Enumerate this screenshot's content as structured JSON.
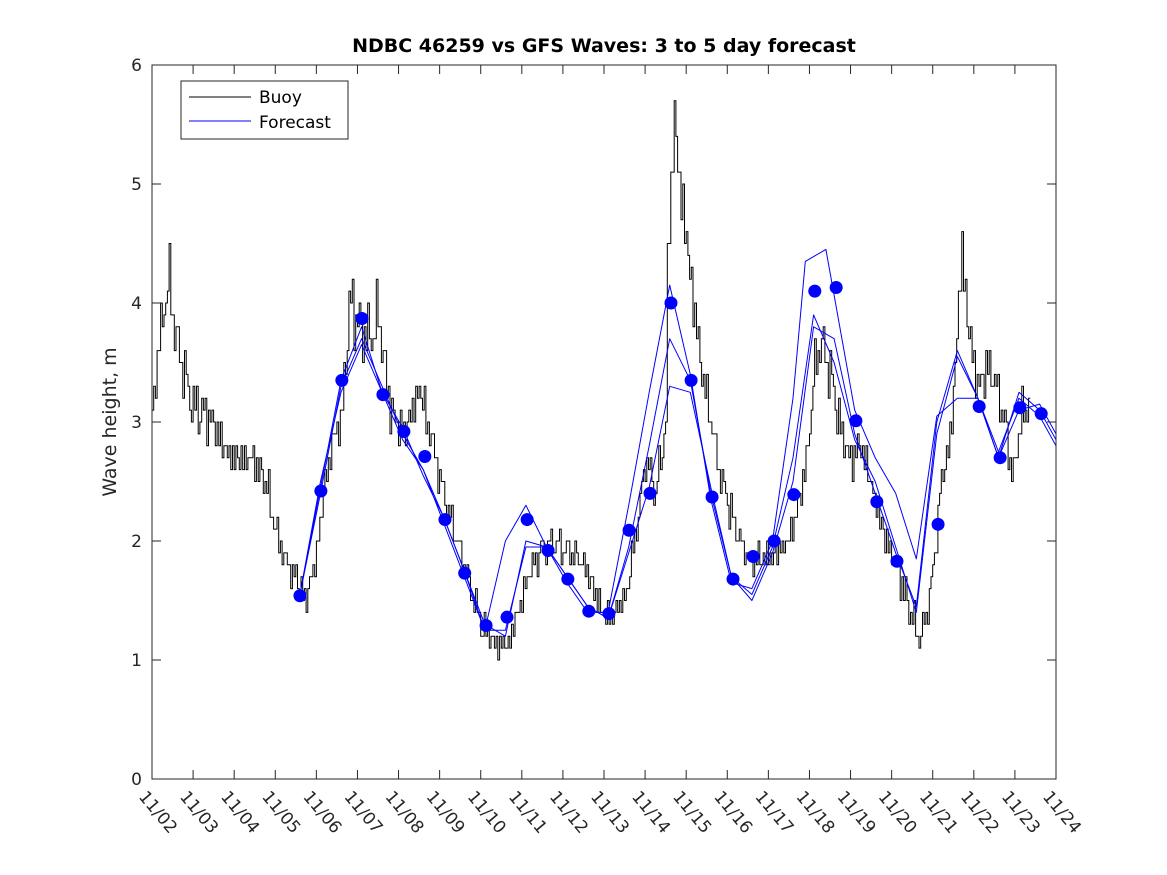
{
  "chart_data": {
    "type": "line",
    "title": "NDBC 46259 vs GFS Waves: 3 to 5 day forecast",
    "xlabel": "",
    "ylabel": "Wave height, m",
    "x_units": "days since 11/02",
    "xlim": [
      0,
      22
    ],
    "ylim": [
      0,
      6
    ],
    "grid": false,
    "legend_position": "top-left",
    "x_tick_labels": [
      "11/02",
      "11/03",
      "11/04",
      "11/05",
      "11/06",
      "11/07",
      "11/08",
      "11/09",
      "11/10",
      "11/11",
      "11/12",
      "11/13",
      "11/14",
      "11/15",
      "11/16",
      "11/17",
      "11/18",
      "11/19",
      "11/20",
      "11/21",
      "11/22",
      "11/23",
      "11/24"
    ],
    "y_ticks": [
      0,
      1,
      2,
      3,
      4,
      5,
      6
    ],
    "legend": [
      {
        "label": "Buoy",
        "color": "#000000"
      },
      {
        "label": "Forecast",
        "color": "#0000ff"
      }
    ],
    "buoy": {
      "name": "Buoy",
      "color": "#000000",
      "x": [
        0,
        0.1,
        0.3,
        0.4,
        0.5,
        0.7,
        0.9,
        1.4,
        1.9,
        2.4,
        2.75,
        3.0,
        3.25,
        3.5,
        3.7,
        4.0,
        4.2,
        4.45,
        4.6,
        4.7,
        4.8,
        5.05,
        5.3,
        5.5,
        5.7,
        5.9,
        6.15,
        6.5,
        6.75,
        7.0,
        7.25,
        7.5,
        7.75,
        8.0,
        8.35,
        8.6,
        8.85,
        9.1,
        9.45,
        9.8,
        10.2,
        10.55,
        10.8,
        11.15,
        11.5,
        11.75,
        12.0,
        12.25,
        12.5,
        12.55,
        12.7,
        12.85,
        13.1,
        13.35,
        13.6,
        13.8,
        14.1,
        14.45,
        14.8,
        15.15,
        15.5,
        15.9,
        16.1,
        16.25,
        16.5,
        16.75,
        17.0,
        17.25,
        17.6,
        17.85,
        18.2,
        18.45,
        18.7,
        18.95,
        19.2,
        19.4,
        19.6,
        19.7,
        19.85,
        20.1,
        20.4,
        20.75,
        20.95,
        21.1,
        21.35
      ],
      "y": [
        3.0,
        3.5,
        4.0,
        4.2,
        3.9,
        3.5,
        3.2,
        3.0,
        2.7,
        2.7,
        2.5,
        2.1,
        1.8,
        1.7,
        1.5,
        1.9,
        2.5,
        2.9,
        3.0,
        3.5,
        4.0,
        3.8,
        3.7,
        3.9,
        3.3,
        3.0,
        2.9,
        3.3,
        2.9,
        2.5,
        2.2,
        1.9,
        1.6,
        1.3,
        1.15,
        1.1,
        1.3,
        1.7,
        1.9,
        2.0,
        1.9,
        1.8,
        1.5,
        1.35,
        1.5,
        2.0,
        2.7,
        2.4,
        3.0,
        4.5,
        5.5,
        5.0,
        4.2,
        3.5,
        3.0,
        2.6,
        2.2,
        1.9,
        1.85,
        1.9,
        2.0,
        2.6,
        3.4,
        3.7,
        3.4,
        2.9,
        2.7,
        2.8,
        2.3,
        2.0,
        1.7,
        1.4,
        1.2,
        1.6,
        2.5,
        2.8,
        3.8,
        4.5,
        3.8,
        3.3,
        3.5,
        3.0,
        2.5,
        3.0,
        3.2
      ]
    },
    "forecast_lines": [
      {
        "name": "Forecast",
        "color": "#0000ff",
        "x": [
          3.6,
          4.1,
          4.6,
          5.1,
          5.6,
          6.1,
          6.6,
          7.1,
          7.6,
          8.1,
          8.6,
          9.1,
          9.6,
          10.1,
          10.6,
          11.1,
          11.6,
          12.1,
          12.6,
          13.1,
          13.6,
          14.1,
          14.6,
          15.1,
          15.6,
          16.1,
          16.6,
          17.1,
          17.6,
          18.1,
          18.6,
          19.1,
          19.6,
          20.1,
          20.6,
          21.1,
          21.6,
          22
        ],
        "y": [
          1.55,
          2.4,
          3.3,
          3.7,
          3.3,
          2.9,
          2.6,
          2.2,
          1.75,
          1.3,
          1.2,
          2.0,
          1.95,
          1.7,
          1.45,
          1.35,
          1.9,
          2.45,
          3.3,
          3.25,
          2.45,
          1.7,
          1.5,
          1.9,
          2.5,
          3.8,
          3.7,
          2.9,
          2.4,
          1.9,
          1.45,
          3.0,
          3.6,
          3.2,
          2.75,
          3.2,
          3.05,
          2.8
        ]
      },
      {
        "name": "Forecast",
        "color": "#0000ff",
        "x": [
          3.6,
          4.1,
          4.6,
          5.1,
          5.6,
          6.1,
          6.6,
          7.1,
          7.6,
          8.1,
          8.6,
          9.1,
          9.6,
          10.1,
          10.6,
          11.1,
          11.6,
          12.1,
          12.6,
          13.1,
          13.6,
          14.1,
          14.6,
          15.1,
          15.6,
          16.1,
          16.6,
          17.1,
          17.6,
          18.1,
          18.6,
          19.1,
          19.6,
          20.1,
          20.6,
          21.1,
          21.6,
          22
        ],
        "y": [
          1.55,
          2.5,
          3.25,
          3.65,
          3.25,
          2.85,
          2.6,
          2.15,
          1.7,
          1.25,
          1.25,
          1.95,
          1.95,
          1.7,
          1.45,
          1.35,
          1.95,
          2.8,
          3.7,
          3.35,
          2.4,
          1.7,
          1.55,
          1.95,
          2.7,
          3.9,
          3.5,
          2.85,
          2.5,
          1.95,
          1.4,
          2.9,
          3.55,
          3.2,
          2.7,
          3.25,
          3.1,
          2.85
        ]
      },
      {
        "name": "Forecast",
        "color": "#0000ff",
        "x": [
          3.6,
          4.1,
          4.6,
          5.1,
          5.6,
          6.1,
          6.6,
          7.1,
          7.6,
          8.1,
          8.6,
          9.1,
          9.6,
          10.1,
          10.6,
          11.1,
          11.6,
          12.1,
          12.6,
          13.1,
          13.6,
          14.1,
          14.6,
          15.1,
          15.6,
          15.9,
          16.4,
          17.1,
          17.6,
          18.1,
          18.6,
          19.1,
          19.6,
          20.1,
          20.6,
          21.1,
          21.6,
          22
        ],
        "y": [
          1.55,
          2.45,
          3.35,
          3.8,
          3.25,
          2.95,
          2.55,
          2.2,
          1.75,
          1.25,
          2.0,
          2.3,
          1.95,
          1.65,
          1.4,
          1.4,
          2.3,
          3.25,
          4.15,
          3.4,
          2.35,
          1.65,
          1.6,
          2.0,
          3.2,
          4.35,
          4.45,
          3.1,
          2.7,
          2.4,
          1.85,
          3.05,
          3.2,
          3.2,
          2.7,
          3.1,
          3.15,
          2.9
        ]
      }
    ],
    "forecast_points": {
      "name": "Forecast",
      "color": "#0000ff",
      "x": [
        3.6,
        4.11,
        4.62,
        5.11,
        5.62,
        6.13,
        6.64,
        7.13,
        7.61,
        8.13,
        8.64,
        9.13,
        9.64,
        10.12,
        10.63,
        11.12,
        11.61,
        12.12,
        12.63,
        13.12,
        13.63,
        14.14,
        14.63,
        15.14,
        15.62,
        16.13,
        16.65,
        17.13,
        17.64,
        18.13,
        19.13,
        20.13,
        20.64,
        21.12,
        21.64
      ],
      "y": [
        1.54,
        2.42,
        3.35,
        3.87,
        3.23,
        2.92,
        2.71,
        2.18,
        1.73,
        1.29,
        1.36,
        2.18,
        1.92,
        1.68,
        1.41,
        1.39,
        2.09,
        2.4,
        4.0,
        3.35,
        2.37,
        1.68,
        1.87,
        2.0,
        2.39,
        4.1,
        4.13,
        3.01,
        2.33,
        1.83,
        2.14,
        3.13,
        2.7,
        3.12,
        3.07
      ]
    }
  }
}
